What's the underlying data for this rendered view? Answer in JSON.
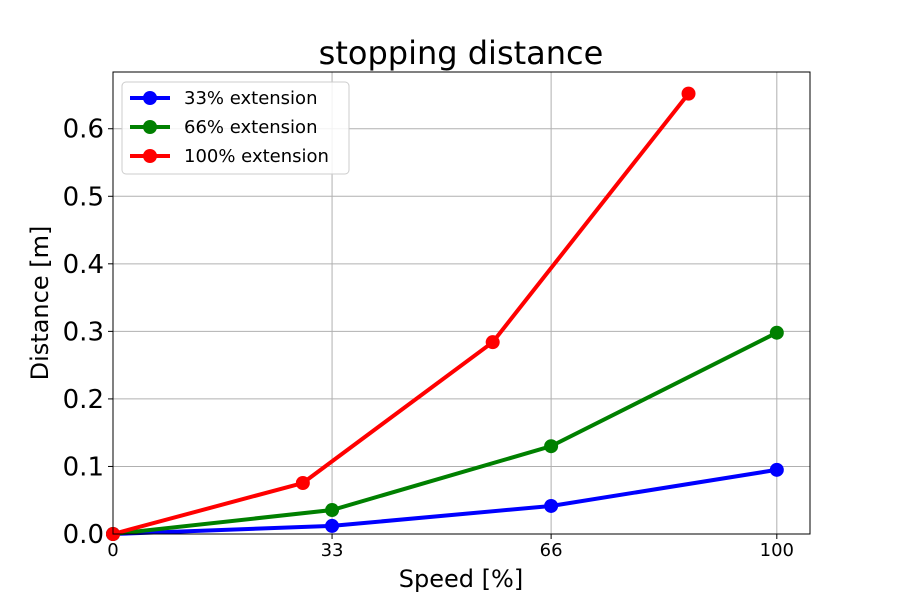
{
  "chart_data": {
    "type": "line",
    "title": "stopping distance",
    "xlabel": "Speed [%]",
    "ylabel": "Distance [m]",
    "xlim": [
      0,
      105
    ],
    "ylim": [
      0,
      0.684
    ],
    "x_ticks": [
      0,
      33,
      66,
      100
    ],
    "x_tick_labels": [
      "0",
      "33",
      "66",
      "100"
    ],
    "y_ticks": [
      0,
      0.1,
      0.2,
      0.3,
      0.4,
      0.5,
      0.6
    ],
    "y_tick_labels": [
      "0.0",
      "0.1",
      "0.2",
      "0.3",
      "0.4",
      "0.5",
      "0.6"
    ],
    "grid": true,
    "legend_position": "top-left",
    "series": [
      {
        "name": "33% extension",
        "color": "#0000ff",
        "x": [
          0,
          33,
          66,
          100
        ],
        "y": [
          0,
          0.012,
          0.0415,
          0.095
        ]
      },
      {
        "name": "66% extension",
        "color": "#008000",
        "x": [
          0,
          33,
          66,
          100
        ],
        "y": [
          0,
          0.0355,
          0.13,
          0.298
        ]
      },
      {
        "name": "100% extension",
        "color": "#ff0000",
        "x": [
          0,
          28.6,
          57.2,
          86.7
        ],
        "y": [
          0,
          0.0755,
          0.284,
          0.652
        ]
      }
    ]
  }
}
